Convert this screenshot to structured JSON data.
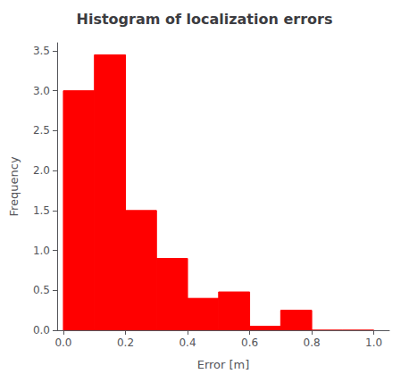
{
  "chart_data": {
    "type": "histogram",
    "title": "Histogram of localization errors",
    "xlabel": "Error [m]",
    "ylabel": "Frequency",
    "bins": [
      0.0,
      0.1,
      0.2,
      0.3,
      0.4,
      0.5,
      0.6,
      0.7,
      0.8,
      0.9,
      1.0
    ],
    "values": [
      3.0,
      3.45,
      1.5,
      0.9,
      0.4,
      0.48,
      0.05,
      0.25,
      0.0,
      0.0
    ],
    "color": "#ff0000",
    "xlim": [
      -0.02,
      1.05
    ],
    "ylim": [
      0.0,
      3.6
    ],
    "xticks": [
      {
        "value": 0.0,
        "label": "0.0"
      },
      0.2,
      0.4,
      0.6,
      0.8,
      {
        "value": 1.0,
        "label": "1.0"
      }
    ],
    "yticks": [
      {
        "value": 0.0,
        "label": "0.0"
      },
      0.5,
      {
        "value": 1.0,
        "label": "1.0"
      },
      1.5,
      {
        "value": 2.0,
        "label": "2.0"
      },
      2.5,
      {
        "value": 3.0,
        "label": "3.0"
      },
      3.5
    ],
    "grid": false
  }
}
